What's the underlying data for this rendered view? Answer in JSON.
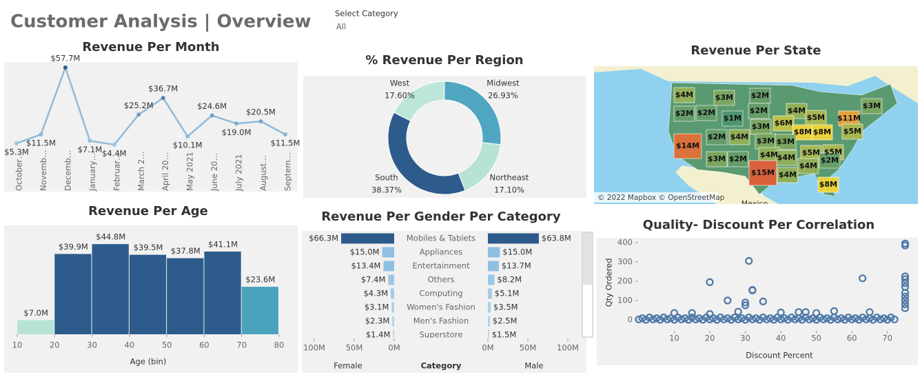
{
  "header": {
    "title": "Customer Analysis | Overview",
    "filter_label": "Select Category",
    "filter_value": "All"
  },
  "chart_data": [
    {
      "type": "line",
      "title": "Revenue Per Month",
      "categories": [
        "October…",
        "Novemb…",
        "Decemb…",
        "January…",
        "Februar…",
        "March 2…",
        "April 20…",
        "May 2021",
        "June 20…",
        "July 2021",
        "August…",
        "Septem…"
      ],
      "values": [
        5.3,
        11.5,
        57.7,
        7.1,
        4.4,
        25.2,
        36.7,
        10.1,
        24.6,
        19.0,
        20.5,
        11.5
      ],
      "value_labels": [
        "$5.3M",
        "$11.5M",
        "$57.7M",
        "$7.1M",
        "$4.4M",
        "$25.2M",
        "$36.7M",
        "$10.1M",
        "$24.6M",
        "$19.0M",
        "$20.5M",
        "$11.5M"
      ],
      "color": "#8dbbdc"
    },
    {
      "type": "donut",
      "title": "% Revenue Per Region",
      "categories": [
        "Midwest",
        "Northeast",
        "South",
        "West"
      ],
      "values": [
        26.93,
        17.1,
        38.37,
        17.6
      ],
      "value_labels": [
        "26.93%",
        "17.10%",
        "38.37%",
        "17.60%"
      ],
      "colors": [
        "#4fa6c0",
        "#b7e2d6",
        "#2d5b8b",
        "#bde6da"
      ]
    },
    {
      "type": "map",
      "title": "Revenue Per State",
      "values": [
        4,
        3,
        2,
        2,
        2,
        2,
        4,
        3,
        1,
        5,
        11,
        3,
        6,
        8,
        5,
        8,
        2,
        4,
        3,
        3,
        14,
        4,
        5,
        5,
        3,
        2,
        4,
        2,
        15,
        4,
        4,
        8
      ],
      "value_labels": [
        "$4M",
        "$3M",
        "$2M",
        "$2M",
        "$2M",
        "$2M",
        "$4M",
        "$3M",
        "$1M",
        "$5M",
        "$11M",
        "$3M",
        "$6M",
        "$8M",
        "$5M",
        "$8M",
        "$2M",
        "$4M",
        "$3M",
        "$3M",
        "$14M",
        "$4M",
        "$5M",
        "$5M",
        "$3M",
        "$2M",
        "$4M",
        "$2M",
        "$15M",
        "$4M",
        "$4M",
        "$8M"
      ],
      "colors": [
        "#4f9470",
        "#e9d23d",
        "#d9613b"
      ],
      "attribution": "© 2022 Mapbox © OpenStreetMap",
      "annotations": [
        "Mexico"
      ]
    },
    {
      "type": "histogram",
      "title": "Revenue Per Age",
      "bins": [
        10,
        20,
        30,
        40,
        50,
        60,
        70,
        80
      ],
      "values": [
        7.0,
        39.9,
        44.8,
        39.5,
        37.8,
        41.1,
        23.6
      ],
      "value_labels": [
        "$7.0M",
        "$39.9M",
        "$44.8M",
        "$39.5M",
        "$37.8M",
        "$41.1M",
        "$23.6M"
      ],
      "colors": [
        "#b7e2d6",
        "#2d5b8b",
        "#2d5b8b",
        "#2d5b8b",
        "#2d5b8b",
        "#2d5b8b",
        "#4aa3bd"
      ],
      "xlim": [
        10,
        80
      ],
      "xticks": [
        10,
        20,
        30,
        40,
        50,
        60,
        70,
        80
      ],
      "xlabel": "Age (bin)"
    },
    {
      "type": "diverging_bar",
      "title": "Revenue Per Gender Per Category",
      "categories": [
        "Mobiles & Tablets",
        "Appliances",
        "Entertainment",
        "Others",
        "Computing",
        "Women's Fashion",
        "Men's Fashion",
        "Superstore"
      ],
      "series": [
        {
          "name": "Female",
          "values": [
            66.3,
            15.0,
            13.4,
            7.4,
            4.3,
            3.1,
            2.3,
            1.4
          ],
          "value_labels": [
            "$66.3M",
            "$15.0M",
            "$13.4M",
            "$7.4M",
            "$4.3M",
            "$3.1M",
            "$2.3M",
            "$1.4M"
          ]
        },
        {
          "name": "Male",
          "values": [
            63.8,
            15.0,
            13.7,
            8.2,
            5.1,
            3.5,
            2.5,
            1.5
          ],
          "value_labels": [
            "$63.8M",
            "$15.0M",
            "$13.7M",
            "$8.2M",
            "$5.1M",
            "$3.5M",
            "$2.5M",
            "$1.5M"
          ]
        }
      ],
      "colors": [
        "#2d5b8b",
        "#8fc0e2",
        "#8fc0e2",
        "#9cc8e6",
        "#a5cde8",
        "#a9d0ea",
        "#acd2eb",
        "#aed3eb"
      ],
      "xlim": [
        0,
        100
      ],
      "xticks": [
        {
          "value": 100,
          "label": "100M"
        },
        {
          "value": 50,
          "label": "50M"
        },
        {
          "value": 0,
          "label": "0M"
        }
      ],
      "category_label": "Category"
    },
    {
      "type": "scatter",
      "title": "Quality- Discount Per Correlation",
      "x": [
        0,
        1,
        2,
        3,
        4,
        5,
        6,
        7,
        8,
        9,
        10,
        11,
        12,
        13,
        14,
        15,
        16,
        17,
        18,
        19,
        20,
        21,
        22,
        23,
        24,
        25,
        26,
        27,
        28,
        29,
        30,
        31,
        32,
        33,
        34,
        35,
        36,
        37,
        38,
        39,
        40,
        41,
        42,
        43,
        44,
        45,
        46,
        47,
        48,
        49,
        50,
        51,
        52,
        53,
        54,
        55,
        56,
        57,
        58,
        59,
        60,
        61,
        62,
        63,
        64,
        65,
        66,
        67,
        68,
        69,
        70,
        71,
        72,
        31,
        20,
        63,
        75,
        75,
        32,
        32,
        25,
        30,
        35,
        30,
        75,
        75,
        75,
        75,
        75,
        75,
        75,
        75,
        75,
        20,
        10,
        15,
        45,
        55,
        47,
        65,
        28,
        40,
        50
      ],
      "y": [
        2,
        8,
        0,
        12,
        2,
        8,
        0,
        12,
        2,
        8,
        0,
        12,
        2,
        8,
        0,
        12,
        2,
        8,
        0,
        12,
        2,
        8,
        0,
        12,
        2,
        8,
        0,
        12,
        2,
        8,
        0,
        12,
        2,
        8,
        0,
        12,
        2,
        8,
        0,
        12,
        2,
        8,
        0,
        12,
        2,
        8,
        0,
        12,
        2,
        8,
        0,
        12,
        2,
        8,
        0,
        12,
        2,
        8,
        0,
        12,
        2,
        8,
        0,
        12,
        2,
        8,
        0,
        12,
        2,
        8,
        0,
        12,
        2,
        305,
        195,
        215,
        385,
        395,
        152,
        155,
        100,
        90,
        95,
        75,
        225,
        210,
        190,
        170,
        140,
        120,
        100,
        80,
        60,
        30,
        35,
        35,
        40,
        45,
        40,
        40,
        42,
        38,
        35
      ],
      "xlim": [
        0,
        78
      ],
      "ylim": [
        -50,
        410
      ],
      "xticks": [
        10,
        20,
        30,
        40,
        50,
        60,
        70
      ],
      "yticks": [
        0,
        100,
        200,
        300,
        400
      ],
      "xlabel": "Discount Percent",
      "ylabel": "Qty Ordered",
      "color": "#4e79a7"
    }
  ]
}
